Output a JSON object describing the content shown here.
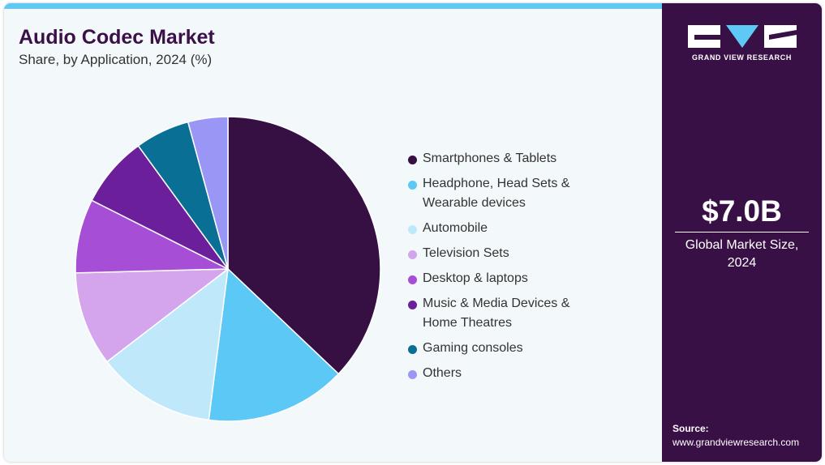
{
  "header": {
    "title": "Audio Codec Market",
    "subtitle": "Share, by Application, 2024 (%)"
  },
  "sidebar": {
    "logo_icon": "gvr-logo-icon",
    "brand": "GRAND VIEW RESEARCH",
    "market_value": "$7.0B",
    "market_value_label": "Global Market Size,\n2024",
    "source_heading": "Source:",
    "source_url": "www.grandviewresearch.com"
  },
  "colors": {
    "accent_bar": "#5ec9f5",
    "sidebar_bg": "#391046",
    "title": "#3b1048"
  },
  "chart_data": {
    "type": "pie",
    "title": "Audio Codec Market",
    "subtitle": "Share, by Application, 2024 (%)",
    "legend_position": "right",
    "start_angle": "12 o'clock, clockwise",
    "slices": [
      {
        "label": "Smartphones & Tablets",
        "value": 37.8,
        "color": "#371043"
      },
      {
        "label": "Headphone, Head Sets &\nWearable devices",
        "value": 15.2,
        "color": "#5bc8f5"
      },
      {
        "label": "Automobile",
        "value": 12.8,
        "color": "#bfe9fb"
      },
      {
        "label": "Television Sets",
        "value": 10.2,
        "color": "#d4a5ec"
      },
      {
        "label": "Desktop & laptops",
        "value": 8.0,
        "color": "#a74ed6"
      },
      {
        "label": "Music & Media Devices &\nHome Theatres",
        "value": 7.7,
        "color": "#6c1f9a"
      },
      {
        "label": "Gaming consoles",
        "value": 5.9,
        "color": "#0a6f94"
      },
      {
        "label": "Others",
        "value": 4.3,
        "color": "#9a96f6"
      }
    ]
  }
}
